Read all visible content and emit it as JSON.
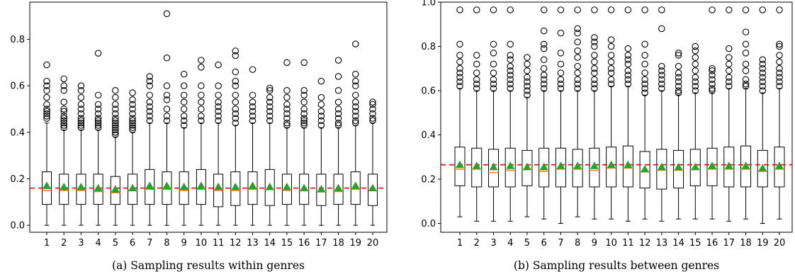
{
  "colors": {
    "box": "#000000",
    "median": "#ff7f0e",
    "mean_marker": "#2ca02c",
    "reference_line": "#e31a1c",
    "outlier": "#000000"
  },
  "chart_data": [
    {
      "type": "box",
      "caption": "(a) Sampling results within genres",
      "categories": [
        "1",
        "2",
        "3",
        "4",
        "5",
        "6",
        "7",
        "8",
        "9",
        "10",
        "11",
        "12",
        "13",
        "14",
        "15",
        "16",
        "17",
        "18",
        "19",
        "20"
      ],
      "ylim": [
        -0.03,
        0.96
      ],
      "yticks": [
        0.0,
        0.2,
        0.4,
        0.6,
        0.8
      ],
      "ytick_labels": [
        "0.0",
        "0.2",
        "0.4",
        "0.6",
        "0.8"
      ],
      "reference_line": 0.16,
      "boxes": [
        {
          "whislo": 0.0,
          "q1": 0.09,
          "med": 0.15,
          "q3": 0.23,
          "whishi": 0.44,
          "mean": 0.17,
          "fliers": [
            0.46,
            0.47,
            0.48,
            0.49,
            0.5,
            0.52,
            0.55,
            0.58,
            0.6,
            0.62,
            0.69
          ]
        },
        {
          "whislo": 0.0,
          "q1": 0.09,
          "med": 0.15,
          "q3": 0.22,
          "whishi": 0.41,
          "mean": 0.165,
          "fliers": [
            0.42,
            0.43,
            0.44,
            0.45,
            0.46,
            0.47,
            0.49,
            0.5,
            0.53,
            0.58,
            0.6,
            0.63
          ]
        },
        {
          "whislo": 0.0,
          "q1": 0.09,
          "med": 0.15,
          "q3": 0.22,
          "whishi": 0.41,
          "mean": 0.165,
          "fliers": [
            0.42,
            0.43,
            0.44,
            0.45,
            0.46,
            0.48,
            0.5,
            0.52,
            0.55,
            0.58,
            0.6
          ]
        },
        {
          "whislo": 0.0,
          "q1": 0.09,
          "med": 0.145,
          "q3": 0.22,
          "whishi": 0.41,
          "mean": 0.16,
          "fliers": [
            0.42,
            0.43,
            0.44,
            0.45,
            0.46,
            0.48,
            0.5,
            0.52,
            0.56,
            0.74
          ]
        },
        {
          "whislo": 0.0,
          "q1": 0.09,
          "med": 0.14,
          "q3": 0.21,
          "whishi": 0.38,
          "mean": 0.155,
          "fliers": [
            0.39,
            0.4,
            0.41,
            0.42,
            0.43,
            0.44,
            0.45,
            0.46,
            0.48,
            0.5,
            0.52,
            0.55,
            0.58
          ]
        },
        {
          "whislo": 0.0,
          "q1": 0.09,
          "med": 0.15,
          "q3": 0.22,
          "whishi": 0.4,
          "mean": 0.16,
          "fliers": [
            0.41,
            0.42,
            0.43,
            0.44,
            0.45,
            0.46,
            0.48,
            0.5,
            0.52,
            0.54,
            0.57
          ]
        },
        {
          "whislo": 0.0,
          "q1": 0.09,
          "med": 0.155,
          "q3": 0.24,
          "whishi": 0.44,
          "mean": 0.17,
          "fliers": [
            0.45,
            0.47,
            0.49,
            0.51,
            0.53,
            0.56,
            0.6,
            0.62,
            0.64
          ]
        },
        {
          "whislo": 0.0,
          "q1": 0.09,
          "med": 0.155,
          "q3": 0.23,
          "whishi": 0.44,
          "mean": 0.17,
          "fliers": [
            0.45,
            0.47,
            0.5,
            0.54,
            0.56,
            0.6,
            0.72,
            0.91
          ]
        },
        {
          "whislo": 0.0,
          "q1": 0.09,
          "med": 0.15,
          "q3": 0.23,
          "whishi": 0.42,
          "mean": 0.165,
          "fliers": [
            0.43,
            0.45,
            0.47,
            0.5,
            0.53,
            0.56,
            0.6,
            0.65
          ]
        },
        {
          "whislo": 0.0,
          "q1": 0.09,
          "med": 0.155,
          "q3": 0.24,
          "whishi": 0.44,
          "mean": 0.17,
          "fliers": [
            0.45,
            0.47,
            0.5,
            0.53,
            0.56,
            0.6,
            0.68,
            0.71
          ]
        },
        {
          "whislo": 0.0,
          "q1": 0.08,
          "med": 0.15,
          "q3": 0.22,
          "whishi": 0.44,
          "mean": 0.165,
          "fliers": [
            0.45,
            0.47,
            0.49,
            0.51,
            0.53,
            0.56,
            0.6,
            0.69
          ]
        },
        {
          "whislo": 0.0,
          "q1": 0.085,
          "med": 0.15,
          "q3": 0.23,
          "whishi": 0.43,
          "mean": 0.165,
          "fliers": [
            0.44,
            0.46,
            0.48,
            0.5,
            0.53,
            0.56,
            0.6,
            0.62,
            0.66,
            0.73,
            0.75
          ]
        },
        {
          "whislo": 0.0,
          "q1": 0.09,
          "med": 0.155,
          "q3": 0.23,
          "whishi": 0.44,
          "mean": 0.17,
          "fliers": [
            0.45,
            0.47,
            0.49,
            0.51,
            0.53,
            0.56,
            0.67
          ]
        },
        {
          "whislo": 0.0,
          "q1": 0.085,
          "med": 0.155,
          "q3": 0.24,
          "whishi": 0.44,
          "mean": 0.165,
          "fliers": [
            0.45,
            0.47,
            0.49,
            0.51,
            0.53,
            0.55,
            0.58,
            0.59
          ]
        },
        {
          "whislo": 0.0,
          "q1": 0.09,
          "med": 0.15,
          "q3": 0.22,
          "whishi": 0.42,
          "mean": 0.165,
          "fliers": [
            0.43,
            0.44,
            0.46,
            0.48,
            0.5,
            0.52,
            0.55,
            0.58,
            0.7
          ]
        },
        {
          "whislo": 0.0,
          "q1": 0.09,
          "med": 0.15,
          "q3": 0.22,
          "whishi": 0.42,
          "mean": 0.16,
          "fliers": [
            0.43,
            0.44,
            0.45,
            0.46,
            0.48,
            0.5,
            0.53,
            0.56,
            0.58,
            0.7
          ]
        },
        {
          "whislo": 0.0,
          "q1": 0.085,
          "med": 0.145,
          "q3": 0.22,
          "whishi": 0.42,
          "mean": 0.155,
          "fliers": [
            0.43,
            0.45,
            0.47,
            0.49,
            0.52,
            0.55,
            0.62
          ]
        },
        {
          "whislo": 0.0,
          "q1": 0.09,
          "med": 0.145,
          "q3": 0.22,
          "whishi": 0.42,
          "mean": 0.16,
          "fliers": [
            0.43,
            0.44,
            0.46,
            0.48,
            0.5,
            0.53,
            0.58,
            0.64,
            0.71
          ]
        },
        {
          "whislo": 0.0,
          "q1": 0.09,
          "med": 0.155,
          "q3": 0.23,
          "whishi": 0.43,
          "mean": 0.17,
          "fliers": [
            0.44,
            0.45,
            0.47,
            0.49,
            0.51,
            0.53,
            0.56,
            0.6,
            0.62,
            0.65,
            0.78
          ]
        },
        {
          "whislo": 0.0,
          "q1": 0.085,
          "med": 0.15,
          "q3": 0.22,
          "whishi": 0.44,
          "mean": 0.16,
          "fliers": [
            0.45,
            0.46,
            0.48,
            0.5,
            0.52,
            0.53
          ]
        }
      ]
    },
    {
      "type": "box",
      "caption": "(b) Sampling results between genres",
      "categories": [
        "1",
        "2",
        "3",
        "4",
        "5",
        "6",
        "7",
        "8",
        "9",
        "10",
        "11",
        "12",
        "13",
        "14",
        "15",
        "16",
        "17",
        "18",
        "19",
        "20"
      ],
      "ylim": [
        -0.04,
        1.0
      ],
      "yticks": [
        0.0,
        0.2,
        0.4,
        0.6,
        0.8,
        1.0
      ],
      "ytick_labels": [
        "0.0",
        "0.2",
        "0.4",
        "0.6",
        "0.8",
        "1.0"
      ],
      "reference_line": 0.265,
      "boxes": [
        {
          "whislo": 0.03,
          "q1": 0.17,
          "med": 0.245,
          "q3": 0.345,
          "whishi": 0.61,
          "mean": 0.265,
          "fliers": [
            0.62,
            0.64,
            0.66,
            0.68,
            0.7,
            0.73,
            0.76,
            0.81,
            0.965
          ]
        },
        {
          "whislo": 0.01,
          "q1": 0.165,
          "med": 0.245,
          "q3": 0.34,
          "whishi": 0.6,
          "mean": 0.26,
          "fliers": [
            0.61,
            0.63,
            0.65,
            0.68,
            0.72,
            0.76,
            0.965
          ]
        },
        {
          "whislo": 0.01,
          "q1": 0.165,
          "med": 0.23,
          "q3": 0.335,
          "whishi": 0.6,
          "mean": 0.255,
          "fliers": [
            0.61,
            0.63,
            0.65,
            0.68,
            0.72,
            0.77,
            0.81,
            0.965
          ]
        },
        {
          "whislo": 0.01,
          "q1": 0.165,
          "med": 0.24,
          "q3": 0.34,
          "whishi": 0.6,
          "mean": 0.26,
          "fliers": [
            0.61,
            0.63,
            0.65,
            0.67,
            0.69,
            0.71,
            0.74,
            0.76,
            0.81,
            0.965
          ]
        },
        {
          "whislo": 0.03,
          "q1": 0.17,
          "med": 0.245,
          "q3": 0.33,
          "whishi": 0.57,
          "mean": 0.255,
          "fliers": [
            0.58,
            0.6,
            0.62,
            0.64,
            0.66,
            0.69,
            0.72,
            0.75
          ]
        },
        {
          "whislo": 0.02,
          "q1": 0.165,
          "med": 0.235,
          "q3": 0.34,
          "whishi": 0.6,
          "mean": 0.255,
          "fliers": [
            0.61,
            0.63,
            0.65,
            0.67,
            0.7,
            0.74,
            0.79,
            0.81,
            0.87,
            0.965
          ]
        },
        {
          "whislo": 0.0,
          "q1": 0.165,
          "med": 0.245,
          "q3": 0.34,
          "whishi": 0.6,
          "mean": 0.26,
          "fliers": [
            0.61,
            0.63,
            0.65,
            0.68,
            0.72,
            0.77,
            0.86,
            0.965
          ]
        },
        {
          "whislo": 0.03,
          "q1": 0.165,
          "med": 0.245,
          "q3": 0.335,
          "whishi": 0.6,
          "mean": 0.26,
          "fliers": [
            0.61,
            0.63,
            0.65,
            0.68,
            0.71,
            0.75,
            0.78,
            0.82,
            0.86,
            0.88,
            0.965
          ]
        },
        {
          "whislo": 0.02,
          "q1": 0.165,
          "med": 0.24,
          "q3": 0.34,
          "whishi": 0.6,
          "mean": 0.26,
          "fliers": [
            0.61,
            0.63,
            0.65,
            0.68,
            0.7,
            0.73,
            0.76,
            0.8,
            0.82,
            0.84,
            0.965
          ]
        },
        {
          "whislo": 0.02,
          "q1": 0.165,
          "med": 0.25,
          "q3": 0.345,
          "whishi": 0.62,
          "mean": 0.265,
          "fliers": [
            0.63,
            0.65,
            0.68,
            0.7,
            0.73,
            0.76,
            0.8,
            0.83,
            0.965
          ]
        },
        {
          "whislo": 0.01,
          "q1": 0.165,
          "med": 0.25,
          "q3": 0.35,
          "whishi": 0.62,
          "mean": 0.265,
          "fliers": [
            0.63,
            0.65,
            0.67,
            0.69,
            0.72,
            0.74,
            0.76,
            0.79,
            0.965
          ]
        },
        {
          "whislo": 0.02,
          "q1": 0.16,
          "med": 0.235,
          "q3": 0.325,
          "whishi": 0.58,
          "mean": 0.245,
          "fliers": [
            0.59,
            0.61,
            0.63,
            0.65,
            0.68,
            0.72,
            0.76,
            0.81,
            0.965
          ]
        },
        {
          "whislo": 0.01,
          "q1": 0.155,
          "med": 0.24,
          "q3": 0.335,
          "whishi": 0.6,
          "mean": 0.255,
          "fliers": [
            0.61,
            0.63,
            0.65,
            0.67,
            0.69,
            0.71,
            0.88,
            0.965
          ]
        },
        {
          "whislo": 0.02,
          "q1": 0.16,
          "med": 0.24,
          "q3": 0.33,
          "whishi": 0.58,
          "mean": 0.255,
          "fliers": [
            0.59,
            0.6,
            0.62,
            0.64,
            0.66,
            0.68,
            0.71,
            0.76,
            0.77
          ]
        },
        {
          "whislo": 0.02,
          "q1": 0.17,
          "med": 0.245,
          "q3": 0.335,
          "whishi": 0.59,
          "mean": 0.255,
          "fliers": [
            0.6,
            0.62,
            0.64,
            0.66,
            0.69,
            0.72,
            0.75,
            0.78,
            0.8
          ]
        },
        {
          "whislo": 0.02,
          "q1": 0.17,
          "med": 0.245,
          "q3": 0.34,
          "whishi": 0.59,
          "mean": 0.26,
          "fliers": [
            0.6,
            0.61,
            0.63,
            0.65,
            0.67,
            0.69,
            0.7,
            0.965
          ]
        },
        {
          "whislo": 0.01,
          "q1": 0.165,
          "med": 0.245,
          "q3": 0.345,
          "whishi": 0.61,
          "mean": 0.26,
          "fliers": [
            0.62,
            0.64,
            0.66,
            0.69,
            0.72,
            0.75,
            0.79,
            0.965
          ]
        },
        {
          "whislo": 0.02,
          "q1": 0.165,
          "med": 0.245,
          "q3": 0.35,
          "whishi": 0.61,
          "mean": 0.26,
          "fliers": [
            0.62,
            0.63,
            0.65,
            0.69,
            0.72,
            0.77,
            0.81,
            0.865,
            0.965
          ]
        },
        {
          "whislo": 0.0,
          "q1": 0.165,
          "med": 0.235,
          "q3": 0.33,
          "whishi": 0.59,
          "mean": 0.25,
          "fliers": [
            0.6,
            0.62,
            0.64,
            0.66,
            0.68,
            0.7,
            0.72,
            0.74,
            0.965
          ]
        },
        {
          "whislo": 0.02,
          "q1": 0.165,
          "med": 0.245,
          "q3": 0.345,
          "whishi": 0.61,
          "mean": 0.26,
          "fliers": [
            0.62,
            0.64,
            0.66,
            0.68,
            0.7,
            0.73,
            0.76,
            0.8,
            0.81,
            0.965
          ]
        }
      ]
    }
  ]
}
